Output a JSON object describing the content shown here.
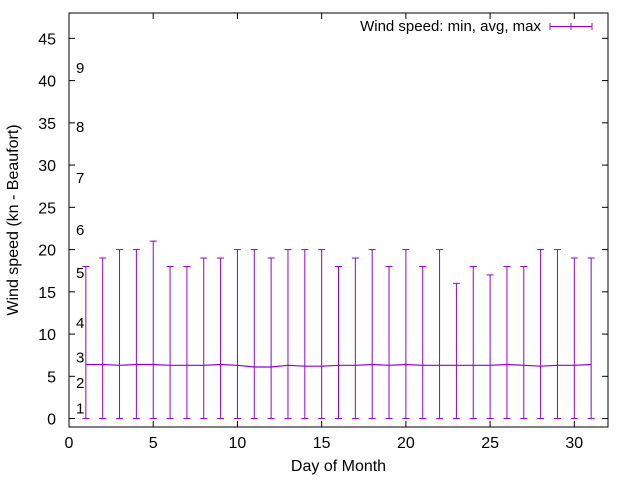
{
  "chart_data": {
    "type": "errorbar",
    "title": "",
    "xlabel": "Day of Month",
    "ylabel": "Wind speed (kn - Beaufort)",
    "xlim": [
      0,
      32
    ],
    "ylim": [
      -1,
      48
    ],
    "xticks": [
      0,
      5,
      10,
      15,
      20,
      25,
      30
    ],
    "yticks": [
      0,
      5,
      10,
      15,
      20,
      25,
      30,
      35,
      40,
      45
    ],
    "grid": false,
    "legend_position": "top-right",
    "beaufort_labels": [
      {
        "label": "1",
        "y": 1.2
      },
      {
        "label": "2",
        "y": 4.2
      },
      {
        "label": "3",
        "y": 7.2
      },
      {
        "label": "4",
        "y": 11.3
      },
      {
        "label": "5",
        "y": 17.2
      },
      {
        "label": "6",
        "y": 22.3
      },
      {
        "label": "7",
        "y": 28.5
      },
      {
        "label": "8",
        "y": 34.5
      },
      {
        "label": "9",
        "y": 41.5
      }
    ],
    "series": [
      {
        "name": "Wind speed: min, avg, max",
        "color": "#9400d3",
        "x": [
          1,
          2,
          3,
          4,
          5,
          6,
          7,
          8,
          9,
          10,
          11,
          12,
          13,
          14,
          15,
          16,
          17,
          18,
          19,
          20,
          21,
          22,
          23,
          24,
          25,
          26,
          27,
          28,
          29,
          30,
          31
        ],
        "min": [
          0,
          0,
          0,
          0,
          0,
          0,
          0,
          0,
          0,
          0,
          0,
          0,
          0,
          0,
          0,
          0,
          0,
          0,
          0,
          0,
          0,
          0,
          0,
          0,
          0,
          0,
          0,
          0,
          0,
          0,
          0
        ],
        "avg": [
          6.4,
          6.4,
          6.3,
          6.4,
          6.4,
          6.3,
          6.3,
          6.3,
          6.4,
          6.3,
          6.1,
          6.1,
          6.3,
          6.2,
          6.2,
          6.3,
          6.3,
          6.4,
          6.3,
          6.4,
          6.3,
          6.3,
          6.3,
          6.3,
          6.3,
          6.4,
          6.3,
          6.2,
          6.3,
          6.3,
          6.4
        ],
        "max": [
          18,
          19,
          20,
          20,
          21,
          18,
          18,
          19,
          19,
          20,
          20,
          19,
          20,
          20,
          20,
          18,
          19,
          20,
          18,
          20,
          18,
          20,
          16,
          18,
          17,
          18,
          18,
          20,
          20,
          19,
          19
        ]
      }
    ]
  }
}
